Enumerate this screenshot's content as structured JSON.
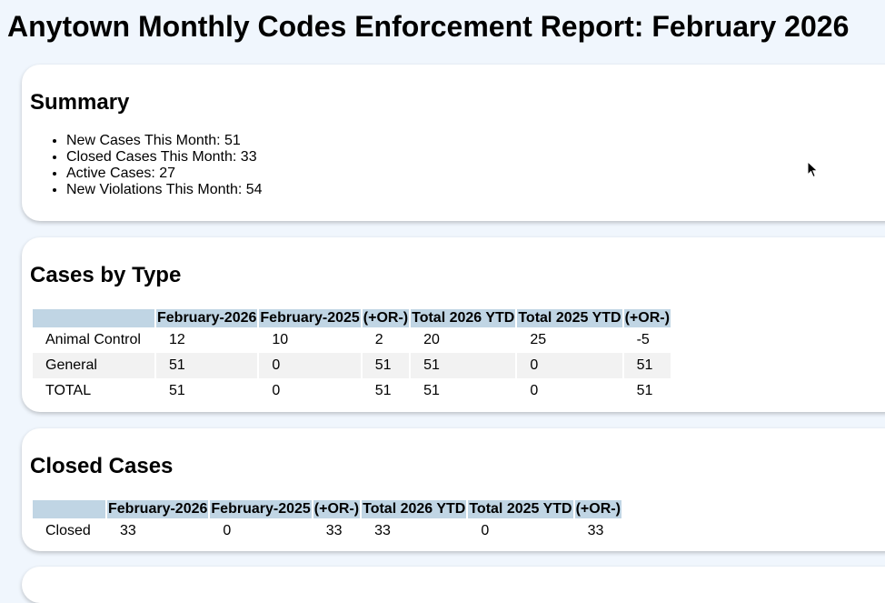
{
  "page": {
    "title": "Anytown Monthly Codes Enforcement Report: February 2026"
  },
  "summary": {
    "heading": "Summary",
    "items": [
      "New Cases This Month: 51",
      "Closed Cases This Month: 33",
      "Active Cases: 27",
      "New Violations This Month: 54"
    ]
  },
  "cases_by_type": {
    "heading": "Cases by Type",
    "columns": [
      "",
      "February-2026",
      "February-2025",
      "(+OR-)",
      "Total 2026 YTD",
      "Total 2025 YTD",
      "(+OR-)"
    ],
    "rows": [
      [
        "Animal Control",
        "12",
        "10",
        "2",
        "20",
        "25",
        "-5"
      ],
      [
        "General",
        "51",
        "0",
        "51",
        "51",
        "0",
        "51"
      ],
      [
        "TOTAL",
        "51",
        "0",
        "51",
        "51",
        "0",
        "51"
      ]
    ]
  },
  "closed_cases": {
    "heading": "Closed Cases",
    "columns": [
      "",
      "February-2026",
      "February-2025",
      "(+OR-)",
      "Total 2026 YTD",
      "Total 2025 YTD",
      "(+OR-)"
    ],
    "rows": [
      [
        "Closed",
        "33",
        "0",
        "33",
        "33",
        "0",
        "33"
      ]
    ]
  },
  "colors": {
    "background": "#f0f6fd",
    "card": "#ffffff",
    "table_header": "#c0d5e4",
    "row_alt": "#f2f2f2"
  },
  "icons": {
    "cursor": "mouse-pointer-icon"
  }
}
